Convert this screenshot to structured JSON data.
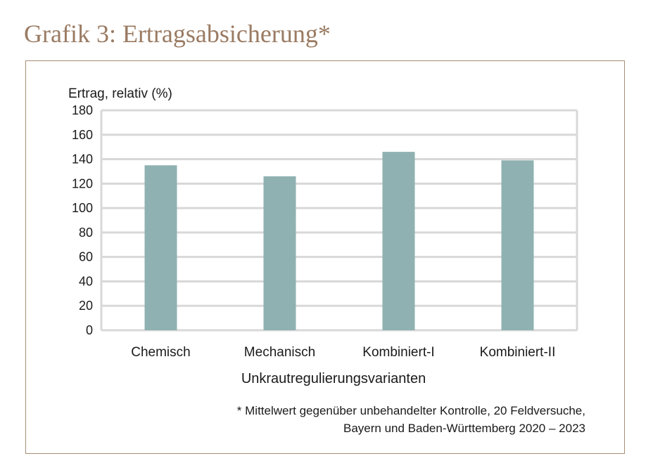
{
  "page": {
    "title": "Grafik 3: Ertragsabsicherung*"
  },
  "chart_data": {
    "type": "bar",
    "title": "",
    "ylabel": "Ertrag, relativ (%)",
    "xlabel": "Unkrautregulierungsvarianten",
    "categories": [
      "Chemisch",
      "Mechanisch",
      "Kombiniert-I",
      "Kombiniert-II"
    ],
    "values": [
      135,
      126,
      146,
      139
    ],
    "ylim": [
      0,
      180
    ],
    "yticks": [
      "0",
      "20",
      "40",
      "60",
      "80",
      "100",
      "120",
      "140",
      "160",
      "180"
    ],
    "grid": true,
    "bar_color": "#8fb1b1",
    "grid_color": "#d8d8d8"
  },
  "footnote": {
    "line1": "* Mittelwert gegenüber unbehandelter Kontrolle, 20 Feldversuche,",
    "line2": "Bayern und Baden-Württemberg 2020 – 2023"
  },
  "colors": {
    "title": "#9a7b63",
    "frame": "#a98e74"
  }
}
